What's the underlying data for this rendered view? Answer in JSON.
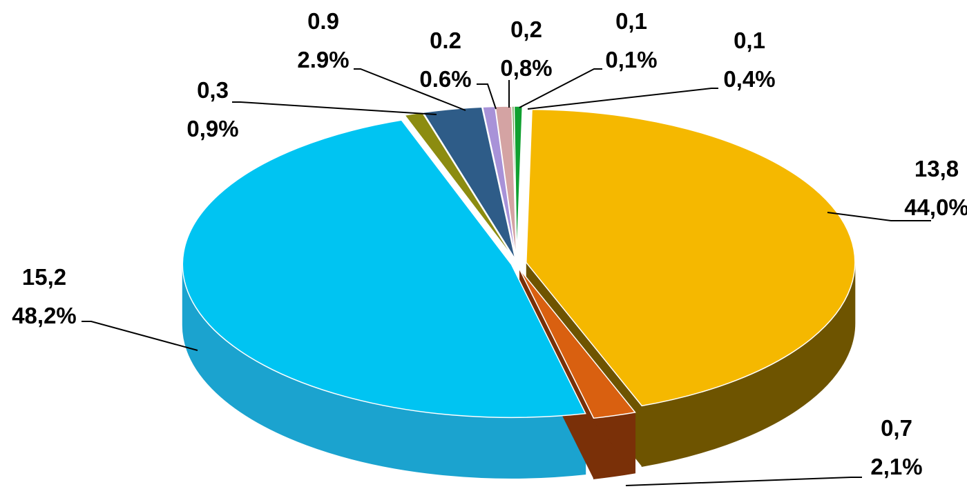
{
  "chart_data": {
    "type": "pie",
    "style": "3d-exploded",
    "title": "",
    "slices": [
      {
        "value_label": "13,8",
        "percent_label": "44,0%",
        "value": 13.8,
        "percent": 44.0,
        "color": "#F5B800",
        "side_color": "#6E5400"
      },
      {
        "value_label": "0,7",
        "percent_label": "2,1%",
        "value": 0.7,
        "percent": 2.1,
        "color": "#D96010",
        "side_color": "#7A3008"
      },
      {
        "value_label": "15,2",
        "percent_label": "48,2%",
        "value": 15.2,
        "percent": 48.2,
        "color": "#00C4F2",
        "side_color": "#1BA3CF"
      },
      {
        "value_label": "0,3",
        "percent_label": "0,9%",
        "value": 0.3,
        "percent": 0.9,
        "color": "#8C8C10",
        "side_color": "#5A5A08"
      },
      {
        "value_label": "0.9",
        "percent_label": "2.9%",
        "value": 0.9,
        "percent": 2.9,
        "color": "#2E5C88",
        "side_color": "#1E3C58"
      },
      {
        "value_label": "0.2",
        "percent_label": "0.6%",
        "value": 0.2,
        "percent": 0.6,
        "color": "#A892D8",
        "side_color": "#6E5E96"
      },
      {
        "value_label": "0,2",
        "percent_label": "0,8%",
        "value": 0.2,
        "percent": 0.8,
        "color": "#D4A3A3",
        "side_color": "#8E6A6A"
      },
      {
        "value_label": "0,1",
        "percent_label": "0,1%",
        "value": 0.1,
        "percent": 0.1,
        "color": "#5A9640",
        "side_color": "#3A6228"
      },
      {
        "value_label": "0,1",
        "percent_label": "0,4%",
        "value": 0.1,
        "percent": 0.4,
        "color": "#10A030",
        "side_color": "#0A6820"
      }
    ]
  }
}
